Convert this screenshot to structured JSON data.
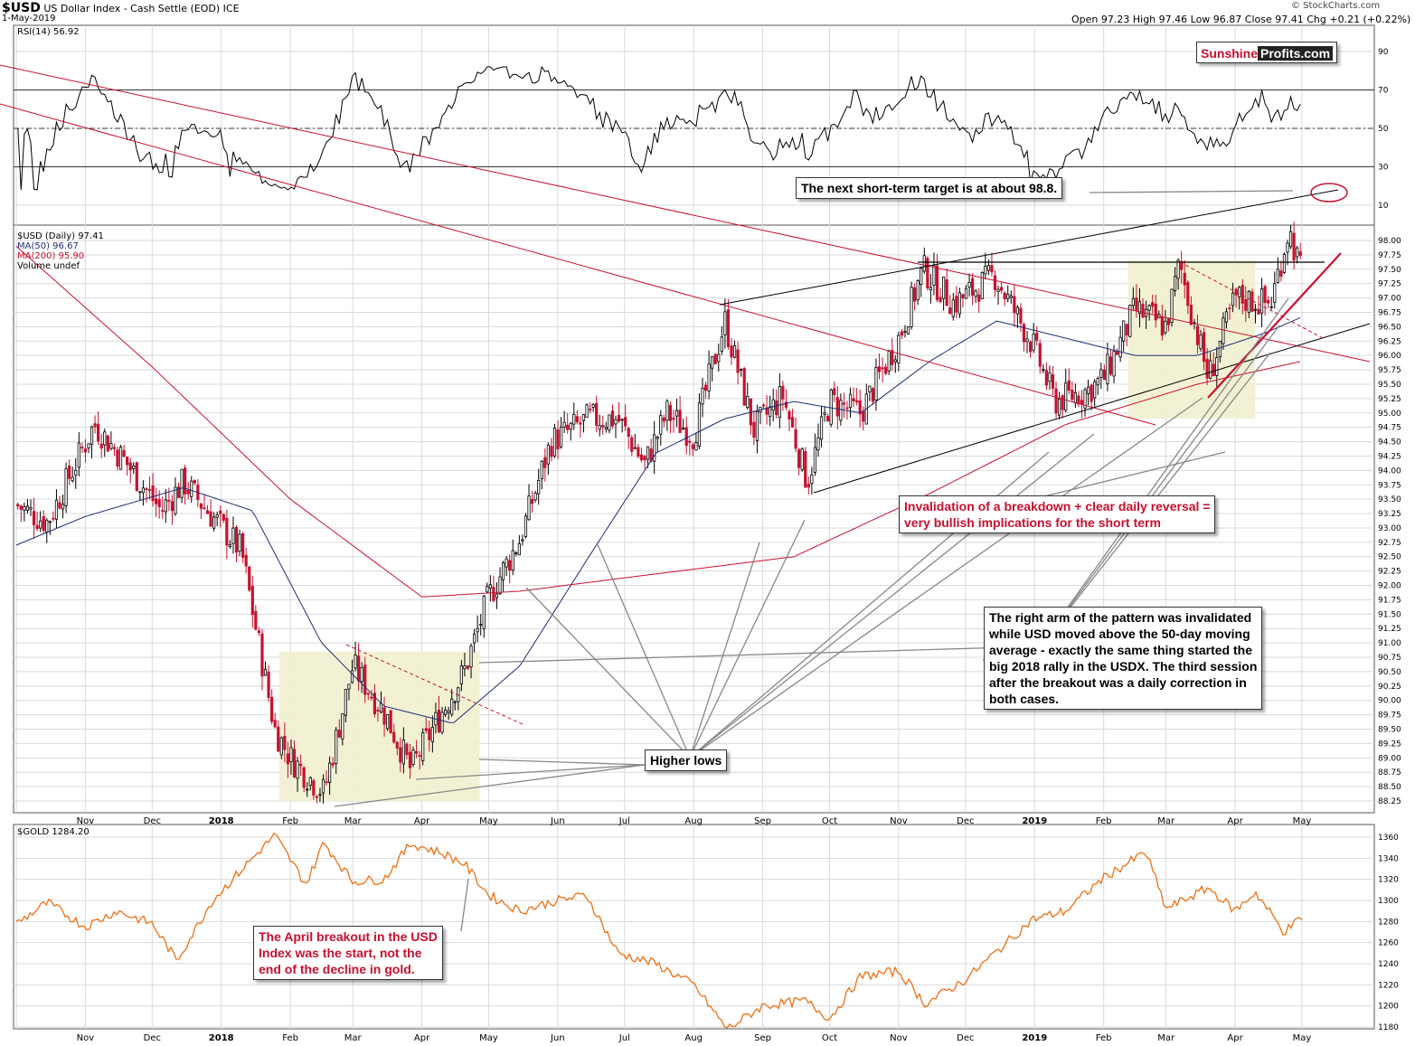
{
  "header": {
    "symbol": "$USD",
    "name": "US Dollar Index - Cash Settle (EOD) ICE",
    "date": "1-May-2019",
    "ohlc": "Open 97.23  High 97.46  Low 96.87  Close 97.41  Chg +0.21 (+0.22%)",
    "credit": "© StockCharts.com"
  },
  "logo": {
    "part1": "Sunshine",
    "part2": "Profits.com"
  },
  "chart_data": [
    {
      "type": "line",
      "panel": "RSI",
      "legend": "RSI(14) 56.92",
      "ylim": [
        0,
        100
      ],
      "y_ticks": [
        "90",
        "70",
        "50",
        "30",
        "10"
      ],
      "levels": [
        30,
        50,
        70
      ]
    },
    {
      "type": "candlestick",
      "panel": "price",
      "legend": [
        "$USD (Daily) 97.41",
        "MA(50) 96.67",
        "MA(200) 95.90",
        "Volume undef"
      ],
      "ylim": [
        88.0,
        98.2
      ],
      "y_ticks": [
        "98.00",
        "97.75",
        "97.50",
        "97.25",
        "97.00",
        "96.75",
        "96.50",
        "96.25",
        "96.00",
        "95.75",
        "95.50",
        "95.25",
        "95.00",
        "94.75",
        "94.50",
        "94.25",
        "94.00",
        "93.75",
        "93.50",
        "93.25",
        "93.00",
        "92.75",
        "92.50",
        "92.25",
        "92.00",
        "91.75",
        "91.50",
        "91.25",
        "91.00",
        "90.75",
        "90.50",
        "90.25",
        "90.00",
        "89.75",
        "89.50",
        "89.25",
        "89.00",
        "88.75",
        "88.50",
        "88.25"
      ],
      "x_ticks": [
        "Nov",
        "Dec",
        "2018",
        "Feb",
        "Mar",
        "Apr",
        "May",
        "Jun",
        "Jul",
        "Aug",
        "Sep",
        "Oct",
        "Nov",
        "Dec",
        "2019",
        "Feb",
        "Mar",
        "Apr",
        "May"
      ],
      "close_path": [
        [
          "2017-10-01",
          93.4
        ],
        [
          "2017-10-15",
          93.1
        ],
        [
          "2017-11-05",
          94.8
        ],
        [
          "2017-11-20",
          94.1
        ],
        [
          "2017-12-05",
          93.3
        ],
        [
          "2017-12-15",
          93.8
        ],
        [
          "2017-12-28",
          93.2
        ],
        [
          "2018-01-10",
          92.6
        ],
        [
          "2018-01-25",
          89.5
        ],
        [
          "2018-02-01",
          89.0
        ],
        [
          "2018-02-16",
          88.4
        ],
        [
          "2018-03-01",
          90.6
        ],
        [
          "2018-03-15",
          89.8
        ],
        [
          "2018-03-27",
          88.8
        ],
        [
          "2018-04-10",
          89.8
        ],
        [
          "2018-04-20",
          90.5
        ],
        [
          "2018-05-01",
          91.8
        ],
        [
          "2018-05-15",
          92.8
        ],
        [
          "2018-05-29",
          94.5
        ],
        [
          "2018-06-15",
          94.9
        ],
        [
          "2018-06-28",
          94.9
        ],
        [
          "2018-07-10",
          94.1
        ],
        [
          "2018-07-20",
          95.0
        ],
        [
          "2018-08-01",
          94.6
        ],
        [
          "2018-08-15",
          96.6
        ],
        [
          "2018-08-28",
          94.7
        ],
        [
          "2018-09-10",
          95.3
        ],
        [
          "2018-09-21",
          93.8
        ],
        [
          "2018-10-01",
          95.2
        ],
        [
          "2018-10-15",
          95.0
        ],
        [
          "2018-11-01",
          96.3
        ],
        [
          "2018-11-12",
          97.5
        ],
        [
          "2018-11-26",
          96.9
        ],
        [
          "2018-12-14",
          97.4
        ],
        [
          "2018-12-31",
          96.2
        ],
        [
          "2019-01-10",
          95.2
        ],
        [
          "2019-01-25",
          95.4
        ],
        [
          "2019-02-01",
          95.6
        ],
        [
          "2019-02-15",
          96.8
        ],
        [
          "2019-03-01",
          96.5
        ],
        [
          "2019-03-07",
          97.6
        ],
        [
          "2019-03-20",
          95.6
        ],
        [
          "2019-04-01",
          97.0
        ],
        [
          "2019-04-17",
          96.9
        ],
        [
          "2019-04-25",
          98.2
        ],
        [
          "2019-05-01",
          97.41
        ]
      ],
      "ma50_path": [
        [
          "2017-10-01",
          92.7
        ],
        [
          "2017-11-01",
          93.2
        ],
        [
          "2017-12-15",
          93.7
        ],
        [
          "2018-01-15",
          93.3
        ],
        [
          "2018-02-15",
          91.0
        ],
        [
          "2018-03-15",
          89.9
        ],
        [
          "2018-04-15",
          89.6
        ],
        [
          "2018-05-15",
          90.6
        ],
        [
          "2018-06-15",
          92.5
        ],
        [
          "2018-07-15",
          94.3
        ],
        [
          "2018-08-15",
          94.9
        ],
        [
          "2018-09-15",
          95.2
        ],
        [
          "2018-10-15",
          95.0
        ],
        [
          "2018-11-15",
          95.9
        ],
        [
          "2018-12-15",
          96.6
        ],
        [
          "2019-01-15",
          96.3
        ],
        [
          "2019-02-15",
          96.0
        ],
        [
          "2019-03-15",
          96.0
        ],
        [
          "2019-04-15",
          96.4
        ],
        [
          "2019-05-01",
          96.67
        ]
      ],
      "ma200_path": [
        [
          "2017-10-01",
          97.9
        ],
        [
          "2017-12-01",
          95.8
        ],
        [
          "2018-02-01",
          93.5
        ],
        [
          "2018-04-01",
          91.8
        ],
        [
          "2018-05-15",
          91.9
        ],
        [
          "2018-07-15",
          92.2
        ],
        [
          "2018-09-15",
          92.5
        ],
        [
          "2018-11-15",
          93.6
        ],
        [
          "2019-01-15",
          94.8
        ],
        [
          "2019-03-15",
          95.5
        ],
        [
          "2019-05-01",
          95.9
        ]
      ]
    },
    {
      "type": "line",
      "panel": "gold",
      "legend": "$GOLD 1284.20",
      "ylim": [
        1175,
        1370
      ],
      "y_ticks": [
        "1360",
        "1340",
        "1320",
        "1300",
        "1280",
        "1260",
        "1240",
        "1220",
        "1200",
        "1180"
      ],
      "x_ticks": [
        "Nov",
        "Dec",
        "2018",
        "Feb",
        "Mar",
        "Apr",
        "May",
        "Jun",
        "Jul",
        "Aug",
        "Sep",
        "Oct",
        "Nov",
        "Dec",
        "2019",
        "Feb",
        "Mar",
        "Apr",
        "May"
      ],
      "path": [
        [
          "2017-10-01",
          1278
        ],
        [
          "2017-10-15",
          1298
        ],
        [
          "2017-11-01",
          1275
        ],
        [
          "2017-11-15",
          1290
        ],
        [
          "2017-12-01",
          1278
        ],
        [
          "2017-12-12",
          1243
        ],
        [
          "2017-12-28",
          1300
        ],
        [
          "2018-01-15",
          1340
        ],
        [
          "2018-01-25",
          1362
        ],
        [
          "2018-02-08",
          1315
        ],
        [
          "2018-02-16",
          1355
        ],
        [
          "2018-03-01",
          1318
        ],
        [
          "2018-03-15",
          1320
        ],
        [
          "2018-03-27",
          1354
        ],
        [
          "2018-04-10",
          1345
        ],
        [
          "2018-04-20",
          1335
        ],
        [
          "2018-05-01",
          1305
        ],
        [
          "2018-05-15",
          1290
        ],
        [
          "2018-06-01",
          1300
        ],
        [
          "2018-06-14",
          1305
        ],
        [
          "2018-06-28",
          1250
        ],
        [
          "2018-07-15",
          1240
        ],
        [
          "2018-08-01",
          1220
        ],
        [
          "2018-08-16",
          1178
        ],
        [
          "2018-09-01",
          1200
        ],
        [
          "2018-09-20",
          1205
        ],
        [
          "2018-10-01",
          1188
        ],
        [
          "2018-10-15",
          1228
        ],
        [
          "2018-11-01",
          1233
        ],
        [
          "2018-11-13",
          1202
        ],
        [
          "2018-12-01",
          1225
        ],
        [
          "2018-12-31",
          1282
        ],
        [
          "2019-01-15",
          1290
        ],
        [
          "2019-01-31",
          1320
        ],
        [
          "2019-02-20",
          1346
        ],
        [
          "2019-03-01",
          1292
        ],
        [
          "2019-03-20",
          1312
        ],
        [
          "2019-04-01",
          1290
        ],
        [
          "2019-04-10",
          1308
        ],
        [
          "2019-04-23",
          1270
        ],
        [
          "2019-05-01",
          1284.2
        ]
      ]
    }
  ],
  "annotations": {
    "target": "The next short-term target is at about 98.8.",
    "invalidation_line1": "Invalidation of a breakdown + clear daily reversal =",
    "invalidation_line2": "very bullish implications for the short term",
    "higher_lows": "Higher lows",
    "right_arm_1": "The right arm of the pattern was invalidated",
    "right_arm_2": "while USD moved above the 50-day moving",
    "right_arm_3": "average - exactly the same thing started the",
    "right_arm_4": "big 2018 rally in the USDX. The third session",
    "right_arm_5": "after the breakout was a daily correction in",
    "right_arm_6": "both cases.",
    "april_1": "The April breakout in the USD",
    "april_2": "Index was the start, not the",
    "april_3": "end of the decline in gold."
  },
  "colors": {
    "candle_up": "#000000",
    "candle_down": "#c8102e",
    "ma50": "#1f2d7a",
    "ma200": "#c8102e",
    "rsi": "#000000",
    "gold": "#ec7014",
    "highlight": "#f1efcf",
    "grid": "#d9d9d9"
  }
}
